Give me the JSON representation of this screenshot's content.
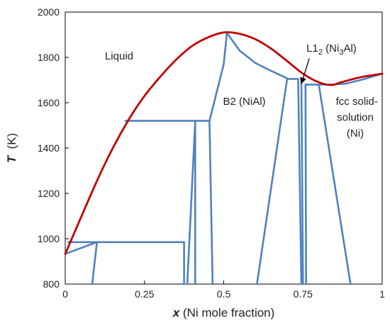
{
  "chart_data": {
    "type": "line",
    "xlabel": {
      "symbol": "x",
      "rest": " (Ni mole fraction)"
    },
    "ylabel": {
      "symbol": "T",
      "rest": "  (K)"
    },
    "xlim": [
      0,
      1
    ],
    "ylim": [
      800,
      2000
    ],
    "xticks": [
      0,
      0.25,
      0.5,
      0.75,
      1
    ],
    "xtick_labels": [
      "0",
      "0.25",
      "0.5",
      "0.75",
      "1"
    ],
    "yticks": [
      800,
      1000,
      1200,
      1400,
      1600,
      1800,
      2000
    ],
    "ytick_labels": [
      "800",
      "1000",
      "1200",
      "1400",
      "1600",
      "1800",
      "2000"
    ],
    "grid": false,
    "liquidus": {
      "color": "#c00000",
      "points": [
        [
          0,
          933
        ],
        [
          0.05,
          1095
        ],
        [
          0.1,
          1255
        ],
        [
          0.15,
          1400
        ],
        [
          0.2,
          1525
        ],
        [
          0.25,
          1630
        ],
        [
          0.3,
          1715
        ],
        [
          0.35,
          1790
        ],
        [
          0.4,
          1850
        ],
        [
          0.45,
          1888
        ],
        [
          0.5,
          1910
        ],
        [
          0.55,
          1904
        ],
        [
          0.6,
          1880
        ],
        [
          0.65,
          1838
        ],
        [
          0.7,
          1784
        ],
        [
          0.75,
          1728
        ],
        [
          0.8,
          1690
        ],
        [
          0.84,
          1678
        ],
        [
          0.87,
          1690
        ],
        [
          0.93,
          1712
        ],
        [
          1.0,
          1728
        ]
      ]
    },
    "phase_boundaries": {
      "color": "#4f81bd",
      "lines": [
        [
          [
            0,
            933
          ],
          [
            0.1,
            985
          ]
        ],
        [
          [
            0.01,
            985
          ],
          [
            0.375,
            985
          ]
        ],
        [
          [
            0.085,
            800
          ],
          [
            0.1,
            985
          ]
        ],
        [
          [
            0.375,
            800
          ],
          [
            0.375,
            985
          ]
        ],
        [
          [
            0.19,
            1520
          ],
          [
            0.455,
            1520
          ]
        ],
        [
          [
            0.385,
            800
          ],
          [
            0.41,
            1520
          ]
        ],
        [
          [
            0.41,
            800
          ],
          [
            0.41,
            1520
          ]
        ],
        [
          [
            0.465,
            800
          ],
          [
            0.455,
            1520
          ]
        ],
        [
          [
            0.455,
            1520
          ],
          [
            0.5,
            1770
          ],
          [
            0.51,
            1908
          ]
        ],
        [
          [
            0.51,
            1908
          ],
          [
            0.55,
            1830
          ],
          [
            0.6,
            1775
          ],
          [
            0.65,
            1740
          ],
          [
            0.7,
            1708
          ]
        ],
        [
          [
            0.7,
            1705
          ],
          [
            0.735,
            1705
          ]
        ],
        [
          [
            0.605,
            800
          ],
          [
            0.7,
            1705
          ]
        ],
        [
          [
            0.735,
            1705
          ],
          [
            0.745,
            800
          ]
        ],
        [
          [
            0.745,
            1705
          ],
          [
            0.75,
            800
          ]
        ],
        [
          [
            0.758,
            1680
          ],
          [
            0.76,
            800
          ]
        ],
        [
          [
            0.758,
            1680
          ],
          [
            0.84,
            1680
          ]
        ],
        [
          [
            0.8,
            1680
          ],
          [
            0.9,
            800
          ]
        ],
        [
          [
            0.84,
            1680
          ],
          [
            0.885,
            1684
          ],
          [
            0.94,
            1703
          ],
          [
            1.0,
            1728
          ]
        ]
      ]
    },
    "annotations": [
      {
        "id": "liquid",
        "text": "Liquid",
        "x": 0.17,
        "y": 1790
      },
      {
        "id": "b2",
        "text": "B2 (NiAl)",
        "x": 0.565,
        "y": 1590
      },
      {
        "id": "fcc-1",
        "text": "fcc solid-",
        "x": 0.92,
        "y": 1590
      },
      {
        "id": "fcc-2",
        "text": "solution",
        "x": 0.915,
        "y": 1520
      },
      {
        "id": "fcc-3",
        "text": "(Ni)",
        "x": 0.915,
        "y": 1450
      }
    ],
    "l12_label": {
      "text_a": "L1",
      "sub_a": "2",
      "text_b": " (Ni",
      "sub_b": "3",
      "text_c": "Al)",
      "x": 0.84,
      "y": 1825,
      "arrow_from": [
        0.77,
        1795
      ],
      "arrow_to": [
        0.745,
        1685
      ]
    }
  }
}
